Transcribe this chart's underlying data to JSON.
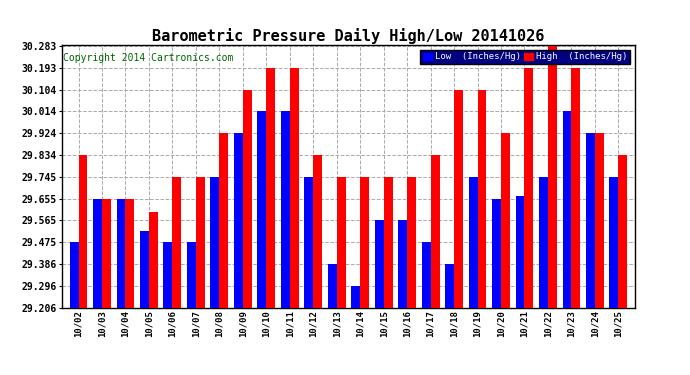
{
  "title": "Barometric Pressure Daily High/Low 20141026",
  "copyright": "Copyright 2014 Cartronics.com",
  "legend_low": "Low  (Inches/Hg)",
  "legend_high": "High  (Inches/Hg)",
  "dates": [
    "10/02",
    "10/03",
    "10/04",
    "10/05",
    "10/06",
    "10/07",
    "10/08",
    "10/09",
    "10/10",
    "10/11",
    "10/12",
    "10/13",
    "10/14",
    "10/15",
    "10/16",
    "10/17",
    "10/18",
    "10/19",
    "10/20",
    "10/21",
    "10/22",
    "10/23",
    "10/24",
    "10/25"
  ],
  "low_values": [
    29.475,
    29.655,
    29.655,
    29.52,
    29.475,
    29.475,
    29.745,
    29.924,
    30.014,
    30.014,
    29.745,
    29.386,
    29.296,
    29.565,
    29.565,
    29.475,
    29.386,
    29.745,
    29.655,
    29.665,
    29.745,
    30.014,
    29.924,
    29.745
  ],
  "high_values": [
    29.834,
    29.655,
    29.655,
    29.6,
    29.745,
    29.745,
    29.924,
    30.104,
    30.193,
    30.193,
    29.834,
    29.745,
    29.745,
    29.745,
    29.745,
    29.834,
    30.104,
    30.104,
    29.924,
    30.193,
    30.283,
    30.193,
    29.924,
    29.834
  ],
  "low_color": "#0000FF",
  "high_color": "#FF0000",
  "bg_color": "#FFFFFF",
  "ylim_min": 29.206,
  "ylim_max": 30.283,
  "yticks": [
    29.206,
    29.296,
    29.386,
    29.475,
    29.565,
    29.655,
    29.745,
    29.834,
    29.924,
    30.014,
    30.104,
    30.193,
    30.283
  ],
  "grid_color": "#AAAAAA",
  "title_fontsize": 11,
  "copyright_fontsize": 7,
  "bar_width": 0.38
}
